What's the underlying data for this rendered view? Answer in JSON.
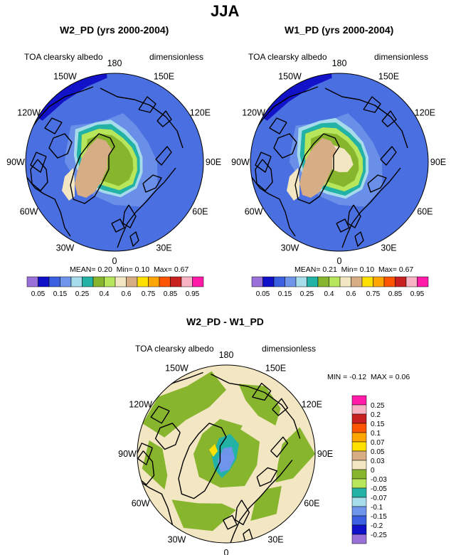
{
  "figure": {
    "main_title": "JJA",
    "colors": {
      "ocean": "#4a6fe0",
      "ocean_light": "#6a8fe8",
      "ice_margin": "#a6dcea",
      "teal": "#23b2a6",
      "green": "#88b52e",
      "light_green": "#b8e65a",
      "tan": "#d6ad84",
      "cream": "#f3e6c3",
      "dark_blue": "#1212c8",
      "coast": "#000000"
    }
  },
  "chart_data": [
    {
      "type": "heatmap",
      "projection": "north-polar-stereographic",
      "title": "W2_PD (yrs 2000-2004)",
      "variable_label": "TOA clearsky albedo",
      "units_label": "dimensionless",
      "stats": {
        "mean_label": "MEAN=",
        "mean": "0.20",
        "min_label": "Min=",
        "min": "0.10",
        "max_label": "Max=",
        "max": "0.67"
      },
      "lon_labels": [
        "180",
        "150E",
        "120E",
        "90E",
        "60E",
        "30E",
        "0",
        "30W",
        "60W",
        "90W",
        "120W",
        "150W"
      ],
      "colorbar": {
        "orientation": "horizontal",
        "levels": [
          "0.05",
          "0.15",
          "0.25",
          "0.4",
          "0.6",
          "0.75",
          "0.85",
          "0.95"
        ],
        "colors": [
          "#9870d8",
          "#1010c8",
          "#3a60e0",
          "#6f95eb",
          "#a7dcea",
          "#23b2a6",
          "#88b52e",
          "#b8e65a",
          "#f3e6c3",
          "#d6ad84",
          "#fee000",
          "#ffa500",
          "#ff5500",
          "#c82020",
          "#f8b4c4",
          "#ff1aa8"
        ]
      }
    },
    {
      "type": "heatmap",
      "projection": "north-polar-stereographic",
      "title": "W1_PD (yrs 2000-2004)",
      "variable_label": "TOA clearsky albedo",
      "units_label": "dimensionless",
      "stats": {
        "mean_label": "MEAN=",
        "mean": "0.21",
        "min_label": "Min=",
        "min": "0.10",
        "max_label": "Max=",
        "max": "0.67"
      },
      "lon_labels": [
        "180",
        "150E",
        "120E",
        "90E",
        "60E",
        "30E",
        "0",
        "30W",
        "60W",
        "90W",
        "120W",
        "150W"
      ],
      "colorbar": {
        "orientation": "horizontal",
        "levels": [
          "0.05",
          "0.15",
          "0.25",
          "0.4",
          "0.6",
          "0.75",
          "0.85",
          "0.95"
        ],
        "colors": [
          "#9870d8",
          "#1010c8",
          "#3a60e0",
          "#6f95eb",
          "#a7dcea",
          "#23b2a6",
          "#88b52e",
          "#b8e65a",
          "#f3e6c3",
          "#d6ad84",
          "#fee000",
          "#ffa500",
          "#ff5500",
          "#c82020",
          "#f8b4c4",
          "#ff1aa8"
        ]
      }
    },
    {
      "type": "heatmap",
      "projection": "north-polar-stereographic",
      "title": "W2_PD - W1_PD",
      "variable_label": "TOA clearsky albedo",
      "units_label": "dimensionless",
      "stats": {
        "min_label": "MIN =",
        "min": "-0.12",
        "max_label": "MAX =",
        "max": "0.06"
      },
      "lon_labels": [
        "180",
        "150E",
        "120E",
        "90E",
        "60E",
        "30E",
        "0",
        "30W",
        "60W",
        "90W",
        "120W",
        "150W"
      ],
      "colorbar": {
        "orientation": "vertical",
        "levels": [
          "0.25",
          "0.2",
          "0.15",
          "0.1",
          "0.07",
          "0.05",
          "0.03",
          "0",
          "-0.03",
          "-0.05",
          "-0.07",
          "-0.1",
          "-0.15",
          "-0.2",
          "-0.25"
        ],
        "colors": [
          "#ff1aa8",
          "#f8b4c4",
          "#c82020",
          "#ff5500",
          "#ffa500",
          "#fee000",
          "#d6ad84",
          "#f3e6c3",
          "#88b52e",
          "#b8e65a",
          "#23b2a6",
          "#a7dcea",
          "#6f95eb",
          "#3a60e0",
          "#1010c8",
          "#9870d8"
        ]
      }
    }
  ]
}
